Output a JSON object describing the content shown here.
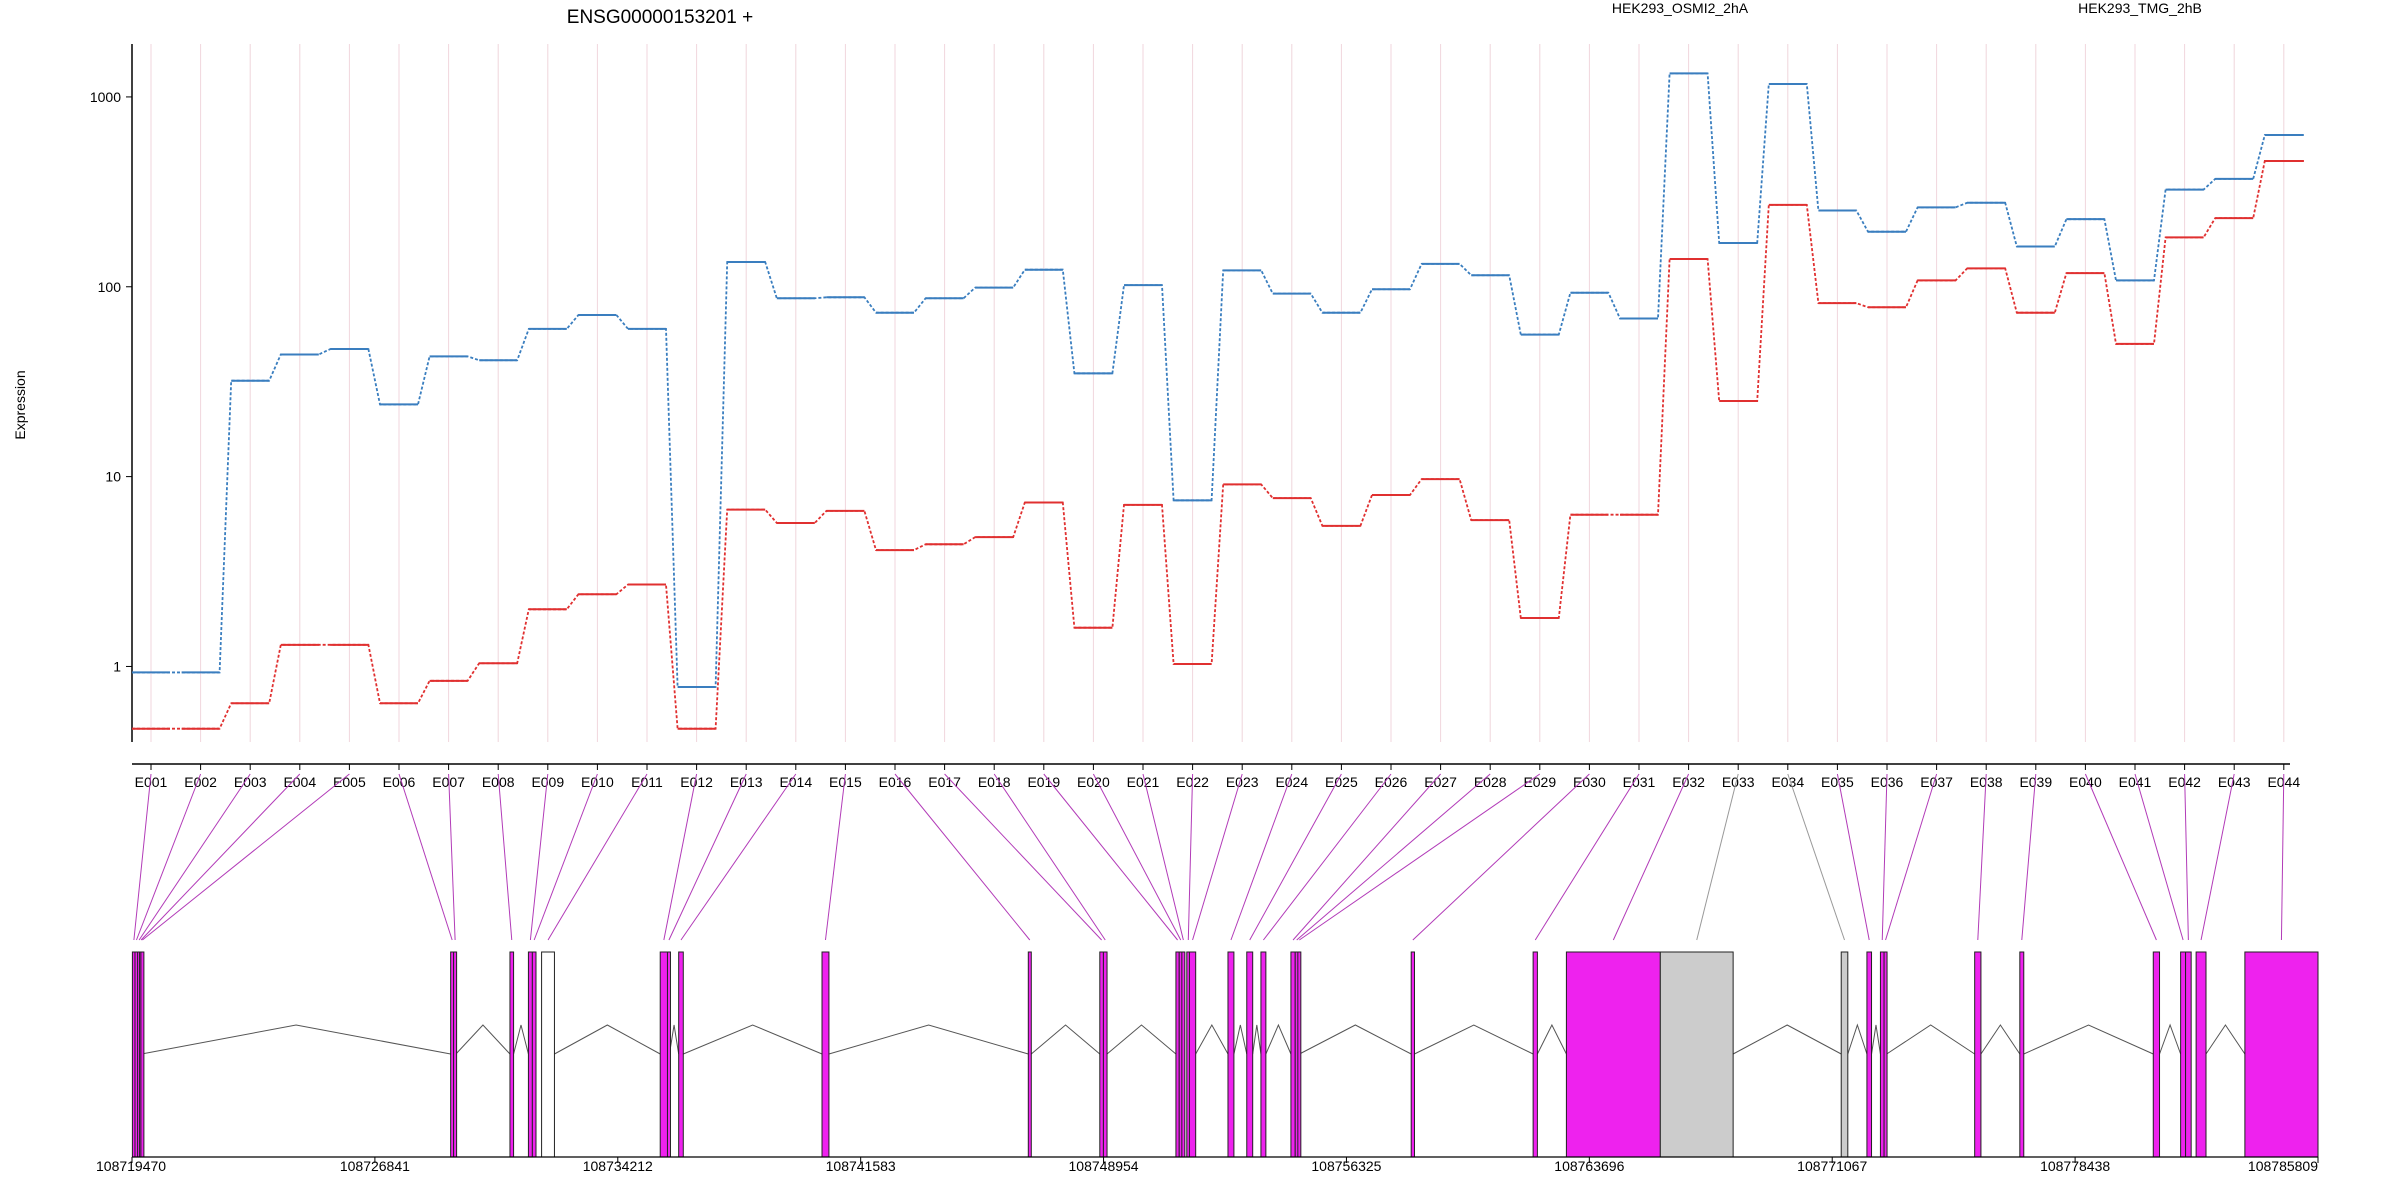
{
  "chart_data": {
    "type": "line",
    "title": "ENSG00000153201 +",
    "ylabel": "Expression",
    "y_scale": "log",
    "ylim": [
      0.4,
      1900
    ],
    "y_ticks": [
      "1",
      "10",
      "100",
      "1000"
    ],
    "categories": [
      "E001",
      "E002",
      "E003",
      "E004",
      "E005",
      "E006",
      "E007",
      "E008",
      "E009",
      "E010",
      "E011",
      "E012",
      "E013",
      "E014",
      "E015",
      "E016",
      "E017",
      "E018",
      "E019",
      "E020",
      "E021",
      "E022",
      "E023",
      "E024",
      "E025",
      "E026",
      "E027",
      "E028",
      "E029",
      "E030",
      "E031",
      "E032",
      "E033",
      "E034",
      "E035",
      "E036",
      "E037",
      "E038",
      "E039",
      "E040",
      "E041",
      "E042",
      "E043",
      "E044"
    ],
    "series": [
      {
        "name": "HEK293_OSMI2_2hA",
        "color": "#e03030",
        "values": [
          0.47,
          0.47,
          0.64,
          1.3,
          1.3,
          0.64,
          0.84,
          1.04,
          2.0,
          2.4,
          2.7,
          0.47,
          6.7,
          5.7,
          6.6,
          4.1,
          4.4,
          4.8,
          7.3,
          1.6,
          7.1,
          1.03,
          9.1,
          7.7,
          5.5,
          8.0,
          9.7,
          5.9,
          1.8,
          6.3,
          6.3,
          140,
          25,
          270,
          82,
          78,
          108,
          125,
          73,
          118,
          50,
          182,
          230,
          460
        ]
      },
      {
        "name": "HEK293_TMG_2hB",
        "color": "#3a7ebf",
        "values": [
          0.93,
          0.93,
          32,
          44,
          47,
          24,
          43,
          41,
          60,
          71,
          60,
          0.78,
          135,
          87,
          88,
          73,
          87,
          99,
          123,
          35,
          102,
          7.5,
          122,
          92,
          73,
          97,
          132,
          115,
          56,
          93,
          68,
          1330,
          170,
          1170,
          252,
          195,
          262,
          277,
          163,
          227,
          108,
          325,
          370,
          630
        ]
      }
    ],
    "genomic_axis": {
      "ticks": [
        "108719470",
        "108726841",
        "108734212",
        "108741583",
        "108748954",
        "108756325",
        "108763696",
        "108771067",
        "108778438",
        "108785809"
      ],
      "start": 108719470,
      "end": 108785809
    },
    "exons": [
      {
        "id": "E001",
        "start": 108719482,
        "end": 108719560,
        "color": "#ee22ee"
      },
      {
        "id": "E002",
        "start": 108719560,
        "end": 108719640,
        "color": "#ee22ee"
      },
      {
        "id": "E003",
        "start": 108719640,
        "end": 108719700,
        "color": "#ee22ee"
      },
      {
        "id": "E004",
        "start": 108719700,
        "end": 108719740,
        "color": "#ee22ee"
      },
      {
        "id": "E005",
        "start": 108719740,
        "end": 108719760,
        "color": "#ee22ee"
      },
      {
        "id": "E006",
        "start": 108729140,
        "end": 108729230,
        "color": "#ee22ee"
      },
      {
        "id": "E007",
        "start": 108729230,
        "end": 108729300,
        "color": "#ee22ee"
      },
      {
        "id": "E008",
        "start": 108730940,
        "end": 108731050,
        "color": "#ee22ee"
      },
      {
        "id": "E009",
        "start": 108731500,
        "end": 108731620,
        "color": "#ee22ee"
      },
      {
        "id": "E010",
        "start": 108731620,
        "end": 108731730,
        "color": "#ee22ee"
      },
      {
        "id": "E011",
        "start": 108731900,
        "end": 108732290,
        "color": "#ffffff"
      },
      {
        "id": "E012",
        "start": 108735500,
        "end": 108735720,
        "color": "#ee22ee"
      },
      {
        "id": "E013",
        "start": 108735720,
        "end": 108735780,
        "color": "#ee22ee"
      },
      {
        "id": "E014",
        "start": 108736060,
        "end": 108736200,
        "color": "#ee22ee"
      },
      {
        "id": "E015",
        "start": 108740410,
        "end": 108740620,
        "color": "#ee22ee"
      },
      {
        "id": "E016",
        "start": 108746670,
        "end": 108746760,
        "color": "#ee22ee"
      },
      {
        "id": "E017",
        "start": 108748840,
        "end": 108748950,
        "color": "#ee22ee"
      },
      {
        "id": "E018",
        "start": 108748950,
        "end": 108749060,
        "color": "#ee22ee"
      },
      {
        "id": "E019",
        "start": 108751150,
        "end": 108751250,
        "color": "#ee22ee"
      },
      {
        "id": "E020",
        "start": 108751250,
        "end": 108751330,
        "color": "#ee22ee"
      },
      {
        "id": "E021",
        "start": 108751330,
        "end": 108751420,
        "color": "#ee22ee"
      },
      {
        "id": "E022",
        "start": 108751480,
        "end": 108751560,
        "color": "#ee22ee"
      },
      {
        "id": "E023",
        "start": 108751560,
        "end": 108751750,
        "color": "#ee22ee"
      },
      {
        "id": "E024",
        "start": 108752730,
        "end": 108752910,
        "color": "#ee22ee"
      },
      {
        "id": "E025",
        "start": 108753300,
        "end": 108753480,
        "color": "#ee22ee"
      },
      {
        "id": "E026",
        "start": 108753730,
        "end": 108753880,
        "color": "#ee22ee"
      },
      {
        "id": "E027",
        "start": 108754640,
        "end": 108754770,
        "color": "#ee22ee"
      },
      {
        "id": "E028",
        "start": 108754770,
        "end": 108754850,
        "color": "#ee22ee"
      },
      {
        "id": "E029",
        "start": 108754850,
        "end": 108754900,
        "color": "#ee22ee"
      },
      {
        "id": "E030",
        "start": 108758290,
        "end": 108758390,
        "color": "#ee22ee"
      },
      {
        "id": "E031",
        "start": 108761990,
        "end": 108762120,
        "color": "#ee22ee"
      },
      {
        "id": "E032",
        "start": 108763000,
        "end": 108765850,
        "color": "#ee22ee"
      },
      {
        "id": "E033",
        "start": 108765850,
        "end": 108768060,
        "color": "#cccccc"
      },
      {
        "id": "E034",
        "start": 108771340,
        "end": 108771540,
        "color": "#cccccc"
      },
      {
        "id": "E035",
        "start": 108772120,
        "end": 108772260,
        "color": "#ee22ee"
      },
      {
        "id": "E036",
        "start": 108772530,
        "end": 108772640,
        "color": "#ee22ee"
      },
      {
        "id": "E037",
        "start": 108772640,
        "end": 108772720,
        "color": "#ee22ee"
      },
      {
        "id": "E038",
        "start": 108775390,
        "end": 108775580,
        "color": "#ee22ee"
      },
      {
        "id": "E039",
        "start": 108776760,
        "end": 108776880,
        "color": "#ee22ee"
      },
      {
        "id": "E040",
        "start": 108780810,
        "end": 108781000,
        "color": "#ee22ee"
      },
      {
        "id": "E041",
        "start": 108781640,
        "end": 108781790,
        "color": "#ee22ee"
      },
      {
        "id": "E042",
        "start": 108781790,
        "end": 108781960,
        "color": "#ee22ee"
      },
      {
        "id": "E043",
        "start": 108782110,
        "end": 108782410,
        "color": "#ee22ee"
      },
      {
        "id": "E044",
        "start": 108783590,
        "end": 108785809,
        "color": "#ee22ee"
      }
    ]
  }
}
